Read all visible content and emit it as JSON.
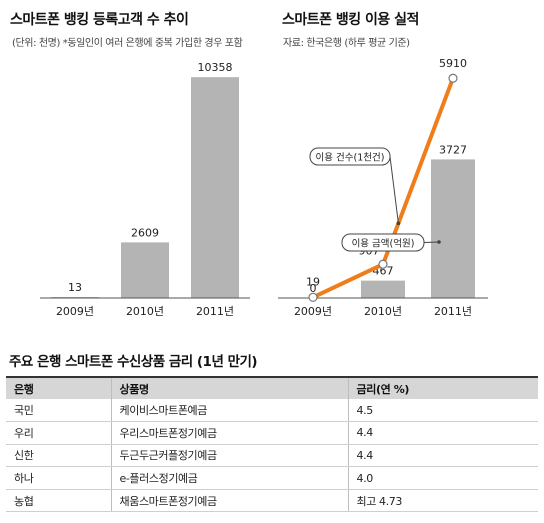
{
  "chart_data": [
    {
      "type": "bar",
      "title": "스마트폰 뱅킹 등록고객 수 추이",
      "subtitle": "(단위: 천명) *동일인이 여러 은행에 중복 가입한 경우 포함",
      "categories": [
        "2009년",
        "2010년",
        "2011년"
      ],
      "series": [
        {
          "values": [
            13,
            2609,
            10358
          ]
        }
      ],
      "value_labels": [
        "13",
        "2609",
        "10358"
      ],
      "ylim": [
        0,
        10600
      ],
      "grid": false,
      "colors": {
        "bar": "#b4b4b4",
        "baseline": "#555555"
      }
    },
    {
      "type": "bar+line",
      "title": "스마트폰 뱅킹 이용 실적",
      "subtitle": "자료: 한국은행 (하루 평균 기준)",
      "categories": [
        "2009년",
        "2010년",
        "2011년"
      ],
      "series": [
        {
          "name": "이용 금액(억원)",
          "type": "bar",
          "values": [
            0,
            467,
            3727
          ],
          "labels": [
            "0",
            "467",
            "3727"
          ]
        },
        {
          "name": "이용 건수(1천건)",
          "type": "line",
          "values": [
            19,
            907,
            5910
          ],
          "labels": [
            "19",
            "907",
            "5910"
          ]
        }
      ],
      "ylim": [
        0,
        6400
      ],
      "grid": false,
      "colors": {
        "bar": "#b4b4b4",
        "line": "#ef7d1a",
        "marker_fill": "#ffffff",
        "baseline": "#555555"
      }
    }
  ],
  "table": {
    "title": "주요 은행 스마트폰 수신상품 금리 (1년 만기)",
    "columns": [
      "은행",
      "상품명",
      "금리(연 %)"
    ],
    "rows": [
      [
        "국민",
        "케이비스마트폰예금",
        "4.5"
      ],
      [
        "우리",
        "우리스마트폰정기예금",
        "4.4"
      ],
      [
        "신한",
        "두근두근커플정기예금",
        "4.4"
      ],
      [
        "하나",
        "e-플러스정기예금",
        "4.0"
      ],
      [
        "농협",
        "채움스마트폰정기예금",
        "최고 4.73"
      ]
    ]
  }
}
